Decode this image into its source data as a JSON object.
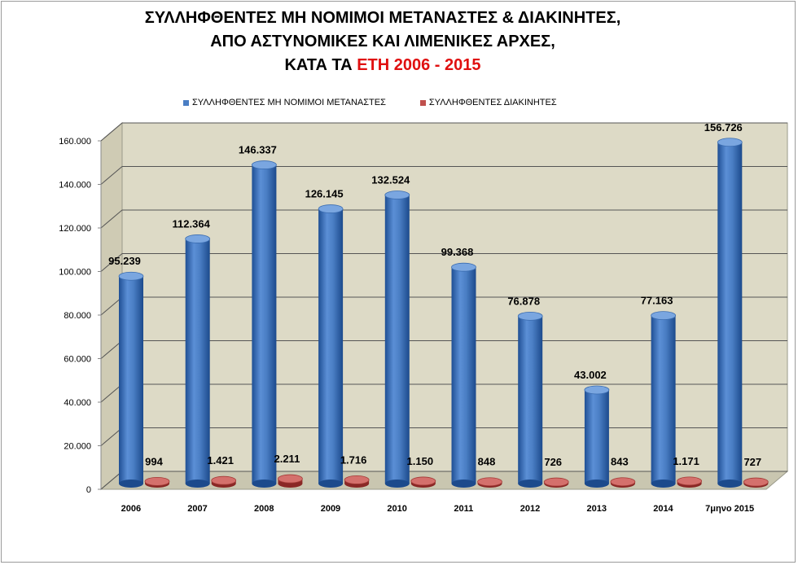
{
  "title": {
    "line1": "ΣΥΛΛΗΦΘΕΝΤΕΣ ΜΗ ΝΟΜΙΜΟΙ ΜΕΤΑΝΑΣΤΕΣ & ΔΙΑΚΙΝΗΤΕΣ,",
    "line2": "ΑΠΟ ΑΣΤΥΝΟΜΙΚΕΣ ΚΑΙ ΛΙΜΕΝΙΚΕΣ ΑΡΧΕΣ,",
    "line3_prefix": "ΚΑΤΑ ΤΑ ",
    "line3_highlight": "ΕΤΗ 2006 - 2015"
  },
  "colors": {
    "migrants": "#4a7ec4",
    "smugglers": "#c0504d",
    "wall": "#dddac6",
    "highlight": "#e01010"
  },
  "chart_data": {
    "type": "bar",
    "categories": [
      "2006",
      "2007",
      "2008",
      "2009",
      "2010",
      "2011",
      "2012",
      "2013",
      "2014",
      "7μηνο 2015"
    ],
    "series": [
      {
        "name": "ΣΥΛΛΗΦΘΕΝΤΕΣ ΜΗ ΝΟΜΙΜΟΙ ΜΕΤΑΝΑΣΤΕΣ",
        "values": [
          95239,
          112364,
          146337,
          126145,
          132524,
          99368,
          76878,
          43002,
          77163,
          156726
        ],
        "labels": [
          "95.239",
          "112.364",
          "146.337",
          "126.145",
          "132.524",
          "99.368",
          "76.878",
          "43.002",
          "77.163",
          "156.726"
        ]
      },
      {
        "name": "ΣΥΛΛΗΦΘΕΝΤΕΣ ΔΙΑΚΙΝΗΤΕΣ",
        "values": [
          994,
          1421,
          2211,
          1716,
          1150,
          848,
          726,
          843,
          1171,
          727
        ],
        "labels": [
          "994",
          "1.421",
          "2.211",
          "1.716",
          "1.150",
          "848",
          "726",
          "843",
          "1.171",
          "727"
        ]
      }
    ],
    "ylim": [
      0,
      160000
    ],
    "yticks": [
      0,
      20000,
      40000,
      60000,
      80000,
      100000,
      120000,
      140000,
      160000
    ],
    "ytick_labels": [
      "0",
      "20.000",
      "40.000",
      "60.000",
      "80.000",
      "100.000",
      "120.000",
      "140.000",
      "160.000"
    ],
    "grid": true,
    "legend": "top"
  }
}
